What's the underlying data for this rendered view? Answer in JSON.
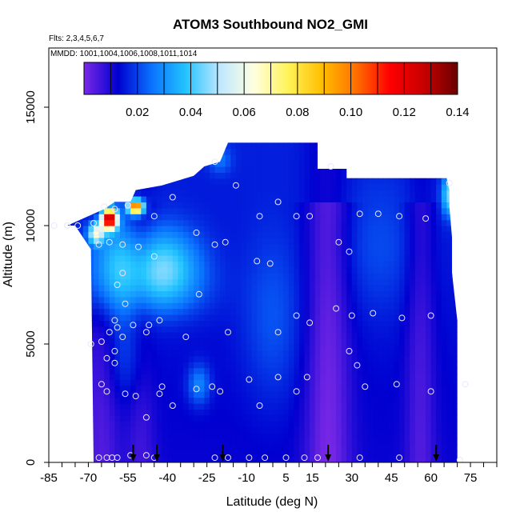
{
  "chart_data": {
    "type": "heatmap",
    "title": "ATOM3 Southbound NO2_GMI",
    "flights_label": "Flts: 2,3,4,5,6,7",
    "mmdd_label": "MMDD: 1001,1004,1006,1008,1011,1014",
    "xlabel": "Latitude (deg N)",
    "ylabel": "Altitude (m)",
    "xlim": [
      -85,
      85
    ],
    "ylim": [
      0,
      17500
    ],
    "x_ticks": [
      -85,
      -70,
      -55,
      -40,
      -25,
      -10,
      5,
      15,
      30,
      45,
      60,
      75
    ],
    "y_ticks": [
      0,
      5000,
      10000,
      15000
    ],
    "colorbar": {
      "min": 0.0,
      "max": 0.14,
      "ticks": [
        "0.02",
        "0.04",
        "0.06",
        "0.08",
        "0.10",
        "0.12",
        "0.14"
      ],
      "tick_values": [
        0.02,
        0.04,
        0.06,
        0.08,
        0.1,
        0.12,
        0.14
      ],
      "colors": [
        "#7a28e6",
        "#0000d0",
        "#0a73ff",
        "#23c4ff",
        "#bfe7ff",
        "#ffffe0",
        "#fff35a",
        "#ffbf00",
        "#ff7000",
        "#ff0000",
        "#c80000",
        "#6a0000"
      ]
    },
    "field_envelope": [
      [
        -68,
        0
      ],
      [
        -69,
        9000
      ],
      [
        -75,
        10000
      ],
      [
        -78,
        10000
      ],
      [
        -68,
        10500
      ],
      [
        -64,
        10700
      ],
      [
        -60,
        11000
      ],
      [
        -54,
        11000
      ],
      [
        -52,
        11500
      ],
      [
        -42,
        11700
      ],
      [
        -30,
        12100
      ],
      [
        -26,
        12500
      ],
      [
        -20,
        12700
      ],
      [
        -17,
        13500
      ],
      [
        17,
        13500
      ],
      [
        17,
        12400
      ],
      [
        28,
        12400
      ],
      [
        28,
        12000
      ],
      [
        66,
        12000
      ],
      [
        67,
        11500
      ],
      [
        67,
        10800
      ],
      [
        68,
        9500
      ],
      [
        68,
        8000
      ],
      [
        69,
        7000
      ],
      [
        70,
        6000
      ],
      [
        70,
        0
      ]
    ],
    "background_value": 0.012,
    "field_features": [
      {
        "lat": -62,
        "alt": 8500,
        "sx": 7,
        "sy": 1500,
        "amp": 0.022
      },
      {
        "lat": -42,
        "alt": 8400,
        "sx": 10,
        "sy": 1100,
        "amp": 0.026
      },
      {
        "lat": -45,
        "alt": 7300,
        "sx": 14,
        "sy": 900,
        "amp": 0.01
      },
      {
        "lat": -67,
        "alt": 9700,
        "sx": 2,
        "sy": 300,
        "amp": 0.045
      },
      {
        "lat": -62,
        "alt": 10300,
        "sx": 2,
        "sy": 300,
        "amp": 0.12
      },
      {
        "lat": -52,
        "alt": 10800,
        "sx": 2,
        "sy": 200,
        "amp": 0.1
      },
      {
        "lat": -55,
        "alt": 4500,
        "sx": 6,
        "sy": 1400,
        "amp": 0.008
      },
      {
        "lat": 0,
        "alt": 6000,
        "sx": 8,
        "sy": 2500,
        "amp": 0.008
      },
      {
        "lat": 40,
        "alt": 9000,
        "sx": 12,
        "sy": 2000,
        "amp": 0.006
      },
      {
        "lat": 67,
        "alt": 11300,
        "sx": 2,
        "sy": 600,
        "amp": 0.03
      },
      {
        "lat": -28,
        "alt": 3300,
        "sx": 3,
        "sy": 600,
        "amp": 0.015
      },
      {
        "lat": -20,
        "alt": 12800,
        "sx": 3,
        "sy": 400,
        "amp": 0.01
      }
    ],
    "low_bands": [
      {
        "lat": 21,
        "width": 6,
        "amp": -0.012
      },
      {
        "lat": 56,
        "width": 4,
        "amp": -0.008
      },
      {
        "lat": -50,
        "width": 4,
        "amp": -0.006
      },
      {
        "lat": -65,
        "width": 5,
        "amp": -0.008
      }
    ],
    "sample_points": [
      [
        -83,
        10000
      ],
      [
        -78,
        10000
      ],
      [
        -74,
        10000
      ],
      [
        -68,
        10100
      ],
      [
        -67,
        9700
      ],
      [
        -64,
        10800
      ],
      [
        -60,
        10700
      ],
      [
        -55,
        10850
      ],
      [
        -45,
        10400
      ],
      [
        -38,
        11200
      ],
      [
        -22,
        12700
      ],
      [
        -14,
        11700
      ],
      [
        -5,
        10400
      ],
      [
        2,
        11000
      ],
      [
        9,
        10400
      ],
      [
        14,
        10400
      ],
      [
        22,
        12500
      ],
      [
        33,
        10500
      ],
      [
        40,
        10500
      ],
      [
        48,
        10400
      ],
      [
        58,
        10300
      ],
      [
        67,
        11800
      ],
      [
        -66,
        9200
      ],
      [
        -62,
        9300
      ],
      [
        -57,
        9200
      ],
      [
        -51,
        9100
      ],
      [
        -29,
        9700
      ],
      [
        -22,
        9200
      ],
      [
        -18,
        9300
      ],
      [
        -6,
        8500
      ],
      [
        -1,
        8400
      ],
      [
        25,
        9300
      ],
      [
        29,
        8900
      ],
      [
        -57,
        8000
      ],
      [
        -45,
        8700
      ],
      [
        -59,
        7500
      ],
      [
        -28,
        7100
      ],
      [
        -56,
        6700
      ],
      [
        -60,
        6000
      ],
      [
        -59,
        5700
      ],
      [
        -60,
        4700
      ],
      [
        -65,
        5100
      ],
      [
        -62,
        5500
      ],
      [
        -57,
        5300
      ],
      [
        -53,
        5800
      ],
      [
        -47,
        5800
      ],
      [
        -43,
        6000
      ],
      [
        -48,
        5500
      ],
      [
        -33,
        5300
      ],
      [
        -17,
        5500
      ],
      [
        2,
        5500
      ],
      [
        9,
        6200
      ],
      [
        14,
        5900
      ],
      [
        24,
        6500
      ],
      [
        30,
        6200
      ],
      [
        38,
        6300
      ],
      [
        49,
        6100
      ],
      [
        60,
        6200
      ],
      [
        -69,
        5000
      ],
      [
        -63,
        4400
      ],
      [
        -60,
        4200
      ],
      [
        29,
        4700
      ],
      [
        32,
        4100
      ],
      [
        -65,
        3300
      ],
      [
        -63,
        3000
      ],
      [
        -56,
        2900
      ],
      [
        -52,
        2800
      ],
      [
        -42,
        3200
      ],
      [
        -43,
        2900
      ],
      [
        -29,
        3100
      ],
      [
        -23,
        3200
      ],
      [
        -20,
        3000
      ],
      [
        -9,
        3500
      ],
      [
        2,
        3600
      ],
      [
        9,
        3000
      ],
      [
        13,
        3600
      ],
      [
        35,
        3200
      ],
      [
        47,
        3300
      ],
      [
        60,
        3000
      ],
      [
        73,
        3300
      ],
      [
        -38,
        2400
      ],
      [
        -5,
        2400
      ],
      [
        -48,
        1900
      ],
      [
        -66,
        200
      ],
      [
        -63,
        200
      ],
      [
        -61,
        200
      ],
      [
        -59,
        200
      ],
      [
        -54,
        300
      ],
      [
        -48,
        300
      ],
      [
        -45,
        200
      ],
      [
        -22,
        200
      ],
      [
        -17,
        200
      ],
      [
        -9,
        200
      ],
      [
        -3,
        200
      ],
      [
        5,
        200
      ],
      [
        12,
        200
      ],
      [
        17,
        200
      ],
      [
        33,
        200
      ],
      [
        48,
        200
      ],
      [
        71,
        100
      ]
    ],
    "arrow_latitudes": [
      -53,
      -44,
      -19,
      21,
      62
    ]
  }
}
